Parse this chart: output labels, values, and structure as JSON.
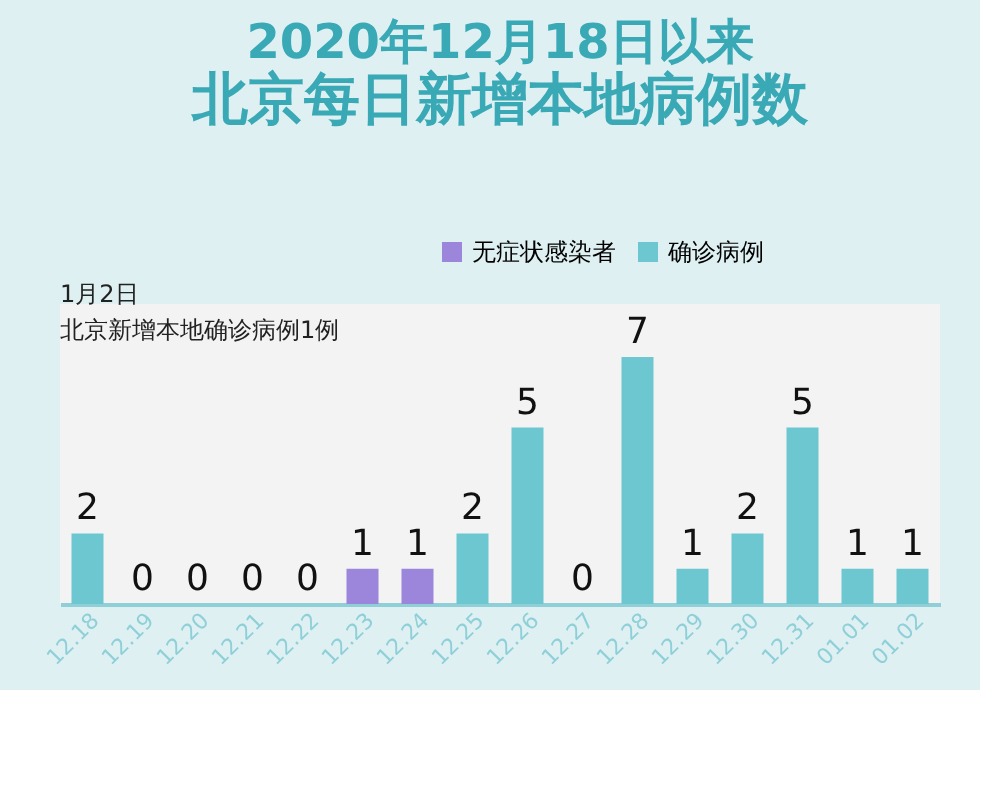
{
  "chart_data": {
    "type": "bar",
    "title": "2020年12月18日以来",
    "subtitle": "北京每日新增本地病例数",
    "categories": [
      "12.18",
      "12.19",
      "12.20",
      "12.21",
      "12.22",
      "12.23",
      "12.24",
      "12.25",
      "12.26",
      "12.27",
      "12.28",
      "12.29",
      "12.30",
      "12.31",
      "01.01",
      "01.02"
    ],
    "series": [
      {
        "name": "无症状感染者",
        "color": "#9b86db",
        "values": [
          null,
          null,
          null,
          null,
          null,
          1,
          1,
          null,
          null,
          null,
          null,
          null,
          null,
          null,
          null,
          null
        ]
      },
      {
        "name": "确诊病例",
        "color": "#6cc7d1",
        "values": [
          2,
          0,
          0,
          0,
          0,
          null,
          null,
          2,
          5,
          0,
          7,
          1,
          2,
          5,
          1,
          1
        ]
      }
    ],
    "data_labels": true,
    "legend": "top right",
    "grid": false,
    "tick_labels": "x",
    "annotations": [
      "1月2日",
      "北京新增本地确诊病例1例"
    ]
  }
}
